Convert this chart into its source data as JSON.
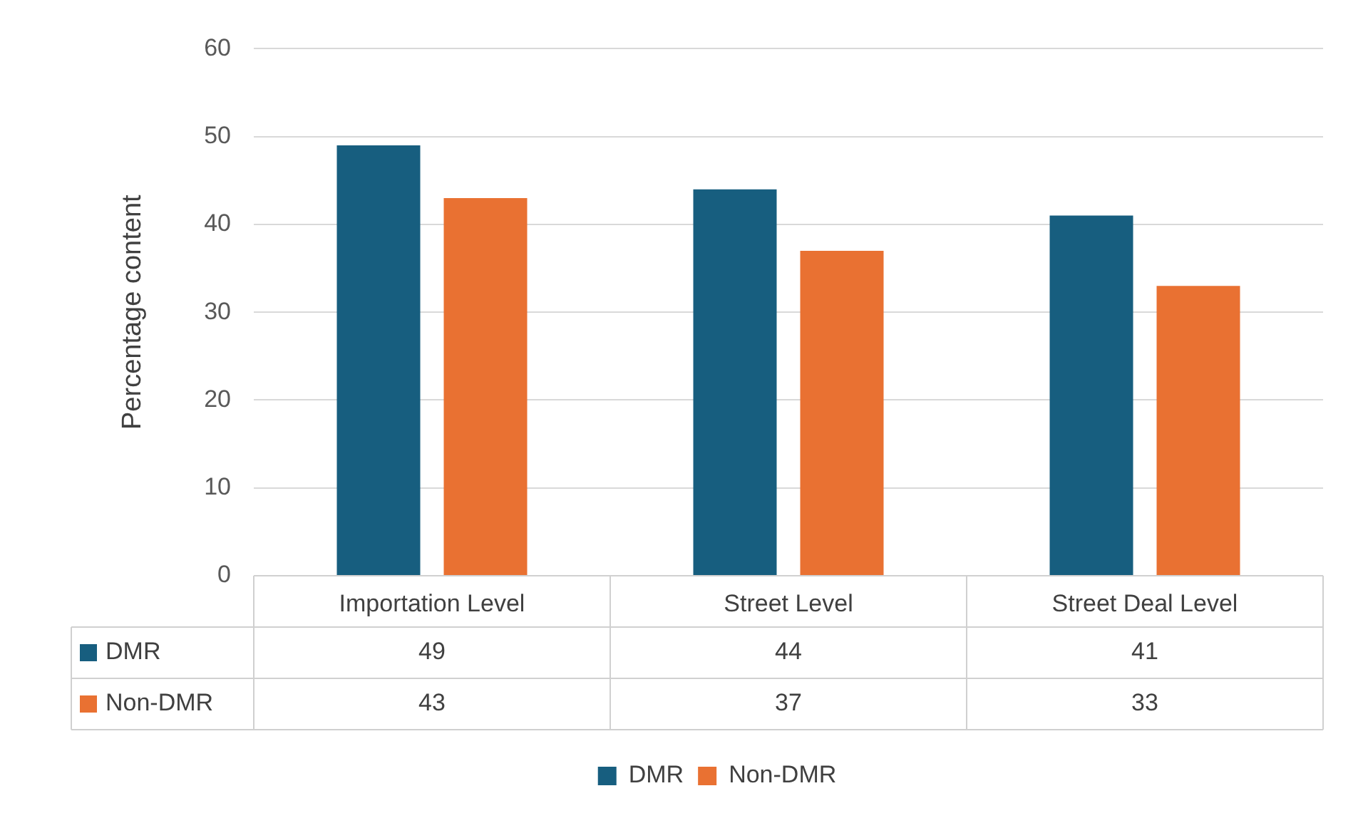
{
  "chart_data": {
    "type": "bar",
    "ylabel": "Percentage content",
    "categories": [
      "Importation Level",
      "Street Level",
      "Street Deal Level"
    ],
    "series": [
      {
        "name": "DMR",
        "color": "#175e7f",
        "values": [
          49,
          44,
          41
        ]
      },
      {
        "name": "Non-DMR",
        "color": "#e97132",
        "values": [
          43,
          37,
          33
        ]
      }
    ],
    "ylim": [
      0,
      60
    ],
    "yticks": [
      0,
      10,
      20,
      30,
      40,
      50,
      60
    ],
    "grid": "y",
    "legend": "bottom",
    "data_labels": true
  }
}
